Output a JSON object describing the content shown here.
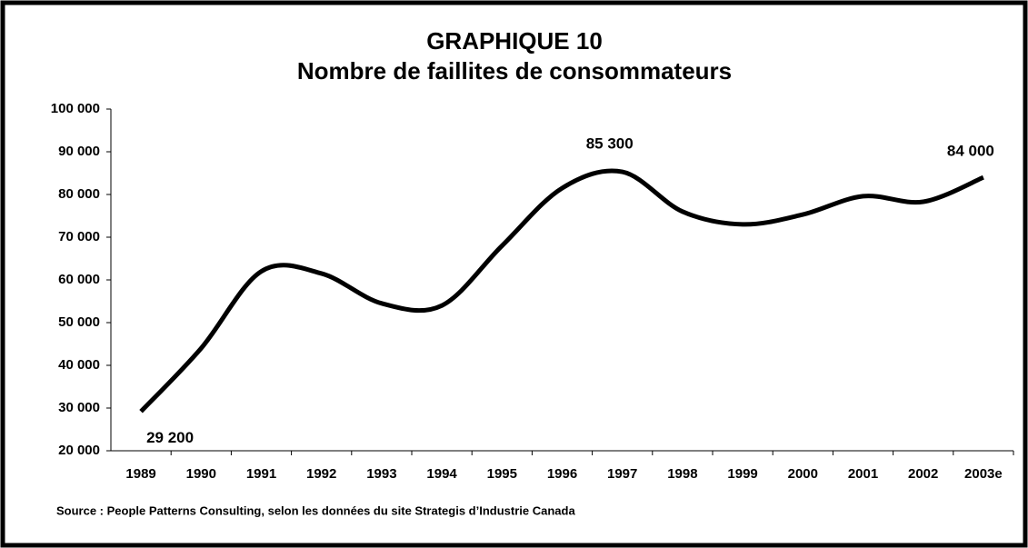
{
  "chart_data": {
    "type": "line",
    "title": "GRAPHIQUE 10",
    "subtitle": "Nombre de faillites de consommateurs",
    "categories": [
      "1989",
      "1990",
      "1991",
      "1992",
      "1993",
      "1994",
      "1995",
      "1996",
      "1997",
      "1998",
      "1999",
      "2000",
      "2001",
      "2002",
      "2003e"
    ],
    "series": [
      {
        "name": "Faillites",
        "color": "#000000",
        "values": [
          29200,
          44000,
          62000,
          61500,
          54500,
          54000,
          68000,
          81500,
          85300,
          76000,
          73000,
          75300,
          79600,
          78300,
          84000
        ],
        "value_labels": [
          "29 200",
          null,
          null,
          null,
          null,
          null,
          null,
          null,
          "85 300",
          null,
          null,
          null,
          null,
          null,
          "84 000"
        ]
      }
    ],
    "ylim": [
      20000,
      100000
    ],
    "yticks": [
      {
        "value": 20000,
        "label": "20 000"
      },
      {
        "value": 30000,
        "label": "30 000"
      },
      {
        "value": 40000,
        "label": "40 000"
      },
      {
        "value": 50000,
        "label": "50 000"
      },
      {
        "value": 60000,
        "label": "60 000"
      },
      {
        "value": 70000,
        "label": "70 000"
      },
      {
        "value": 80000,
        "label": "80 000"
      },
      {
        "value": 90000,
        "label": "90 000"
      },
      {
        "value": 100000,
        "label": "100 000"
      }
    ],
    "grid": false,
    "smooth": true,
    "source": "Source : People Patterns Consulting, selon les données du site Strategis d’Industrie Canada"
  }
}
